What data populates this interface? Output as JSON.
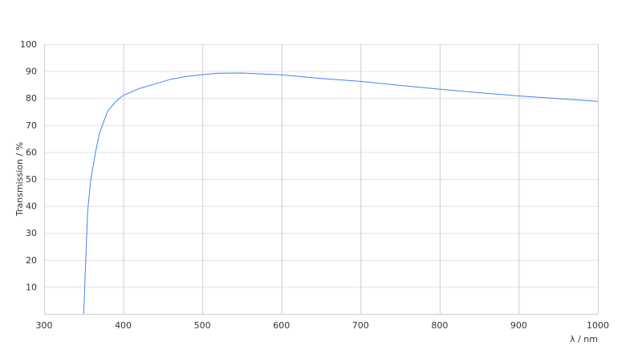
{
  "chart_data": {
    "type": "line",
    "title": "",
    "xlabel": "λ / nm",
    "ylabel": "Transmission / %",
    "xlim": [
      300,
      1000
    ],
    "ylim": [
      0,
      100
    ],
    "xticks": [
      300,
      400,
      500,
      600,
      700,
      800,
      900,
      1000
    ],
    "yticks": [
      10,
      20,
      30,
      40,
      50,
      60,
      70,
      80,
      90,
      100
    ],
    "grid": true,
    "line_color": "#4285f4",
    "series": [
      {
        "x": [
          350,
          355,
          359,
          365,
          370,
          380,
          390,
          400,
          420,
          440,
          460,
          480,
          500,
          520,
          550,
          600,
          650,
          700,
          750,
          800,
          850,
          900,
          950,
          1000
        ],
        "y": [
          0,
          38,
          50,
          60,
          67,
          75,
          78.6,
          81,
          83.5,
          85.2,
          87,
          88,
          88.7,
          89.2,
          89.3,
          88.6,
          87.3,
          86.2,
          84.7,
          83.3,
          82,
          80.8,
          79.8,
          78.8
        ]
      }
    ]
  }
}
